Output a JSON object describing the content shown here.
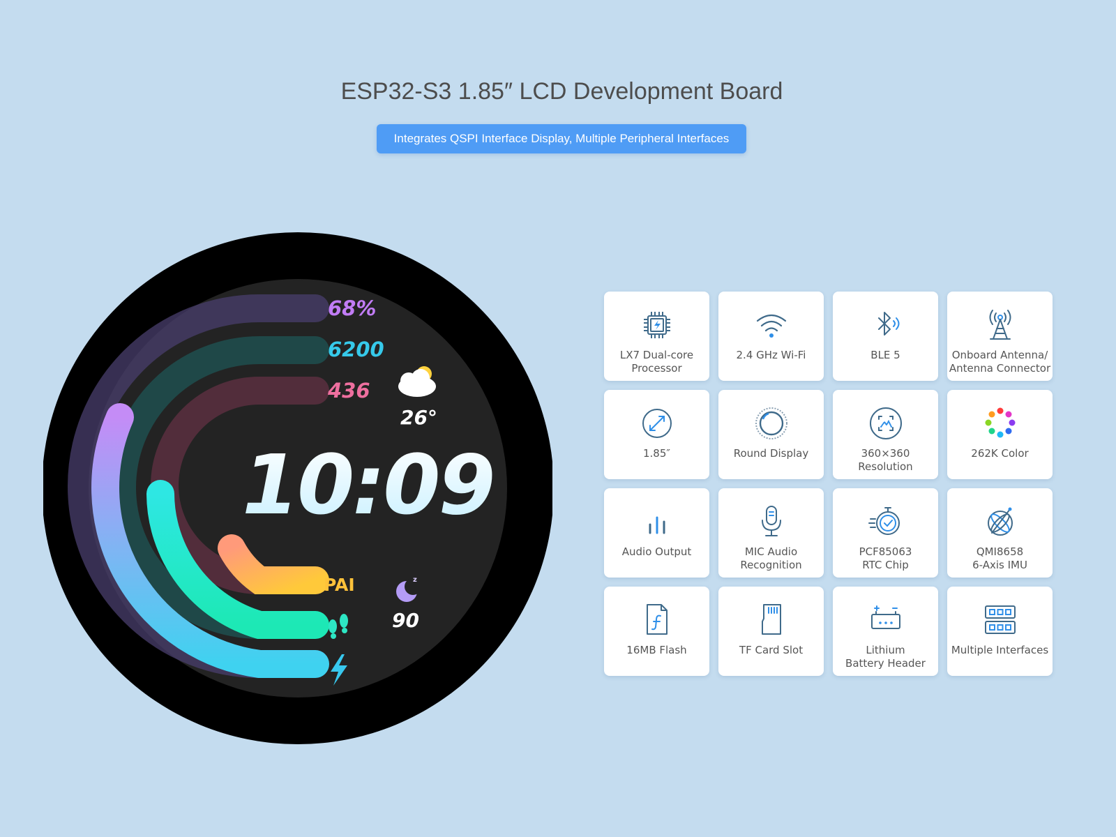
{
  "header": {
    "title": "ESP32-S3 1.85″ LCD Development Board",
    "subtitle": "Integrates QSPI Interface Display, Multiple Peripheral Interfaces"
  },
  "watch_face": {
    "time": "10:09",
    "stats": {
      "battery_percent": "68%",
      "steps": "6200",
      "calories": "436",
      "pai_label": "PAI"
    },
    "weather": {
      "temperature": "26°",
      "icon": "cloud-sun-icon"
    },
    "sleep": {
      "value": "90",
      "icon": "moon-sleep-icon"
    },
    "icons": [
      "footsteps-icon",
      "lightning-icon"
    ],
    "colors": {
      "purple": "#c17cf5",
      "teal": "#2de6d6",
      "cyan": "#3ed0f0",
      "pink": "#ee6f9f",
      "orange": "#ffb347",
      "yellow": "#ffc23a"
    }
  },
  "features": [
    {
      "label": "LX7 Dual-core\nProcessor",
      "icon": "chip-icon"
    },
    {
      "label": "2.4 GHz Wi-Fi",
      "icon": "wifi-icon"
    },
    {
      "label": "BLE 5",
      "icon": "bluetooth-icon"
    },
    {
      "label": "Onboard Antenna/\nAntenna Connector",
      "icon": "antenna-icon"
    },
    {
      "label": "1.85″",
      "icon": "diagonal-size-icon"
    },
    {
      "label": "Round Display",
      "icon": "round-display-icon"
    },
    {
      "label": "360×360\nResolution",
      "icon": "resolution-icon"
    },
    {
      "label": "262K Color",
      "icon": "color-dots-icon"
    },
    {
      "label": "Audio Output",
      "icon": "audio-bars-icon"
    },
    {
      "label": "MIC Audio\nRecognition",
      "icon": "microphone-icon"
    },
    {
      "label": "PCF85063\nRTC Chip",
      "icon": "stopwatch-icon"
    },
    {
      "label": "QMI8658\n6-Axis IMU",
      "icon": "imu-gyro-icon"
    },
    {
      "label": "16MB Flash",
      "icon": "flash-file-icon"
    },
    {
      "label": "TF Card Slot",
      "icon": "sd-card-icon"
    },
    {
      "label": "Lithium\nBattery Header",
      "icon": "battery-header-icon"
    },
    {
      "label": "Multiple Interfaces",
      "icon": "interfaces-icon"
    }
  ]
}
